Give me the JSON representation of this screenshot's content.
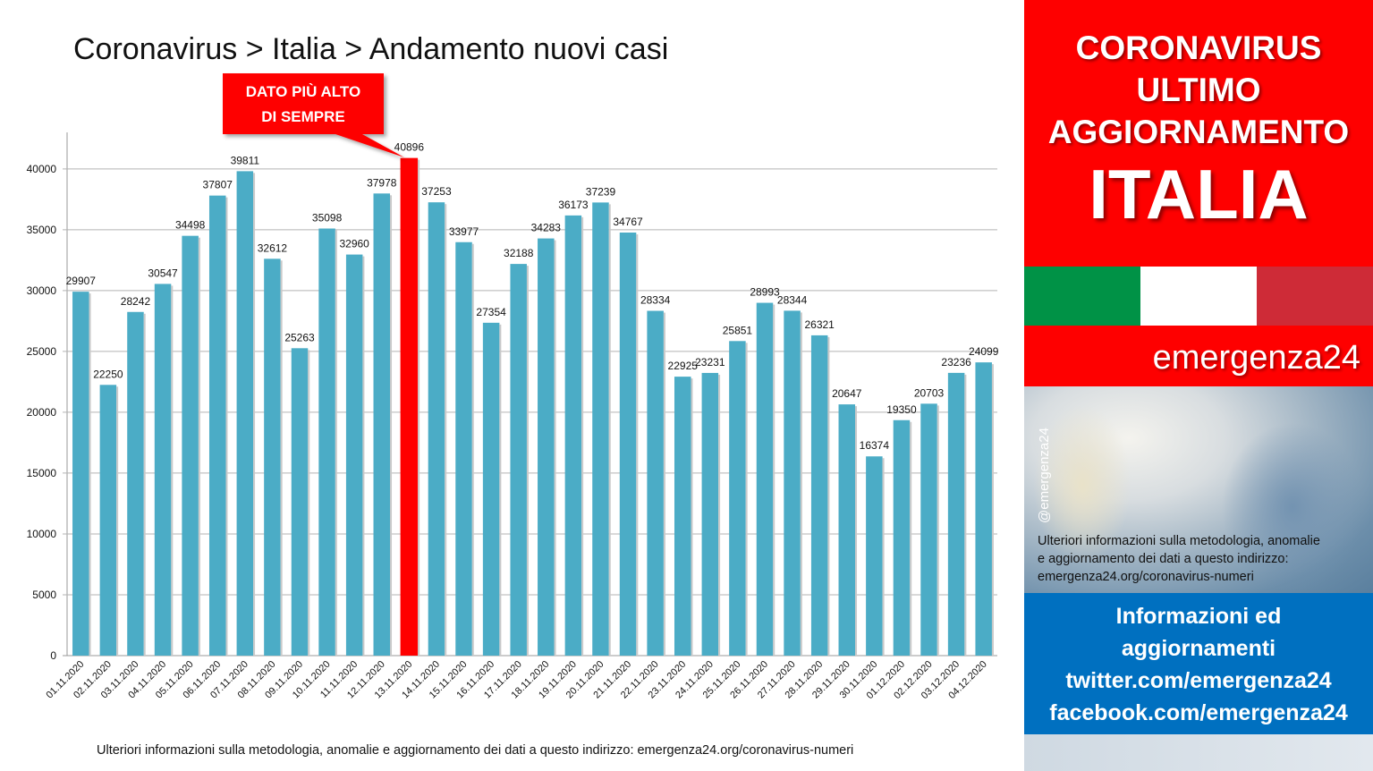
{
  "title": "Coronavirus > Italia > Andamento nuovi casi",
  "callout": {
    "line1": "DATO PIÙ ALTO",
    "line2": "DI SEMPRE"
  },
  "footer_note": "Ulteriori informazioni sulla metodologia, anomalie e aggiornamento dei dati a questo indirizzo: emergenza24.org/coronavirus-numeri",
  "side": {
    "headline": [
      "CORONAVIRUS",
      "ULTIMO",
      "AGGIORNAMENTO"
    ],
    "country": "ITALIA",
    "brand": "emergenza24",
    "handle": "@emergenza24",
    "note_lines": [
      "Ulteriori informazioni sulla metodologia, anomalie",
      "e aggiornamento dei dati a questo indirizzo:",
      "emergenza24.org/coronavirus-numeri"
    ],
    "info_lines": [
      "Informazioni ed",
      "aggiornamenti",
      "twitter.com/emergenza24",
      "facebook.com/emergenza24"
    ]
  },
  "colors": {
    "bar": "#4bacc6",
    "highlight_bar": "#ff0000",
    "flag_green": "#009246",
    "flag_white": "#ffffff",
    "flag_red": "#ce2b37",
    "accent_red": "#fe0000",
    "info_blue": "#0070c0"
  },
  "chart_data": {
    "type": "bar",
    "categories": [
      "01.11.2020",
      "02.11.2020",
      "03.11.2020",
      "04.11.2020",
      "05.11.2020",
      "06.11.2020",
      "07.11.2020",
      "08.11.2020",
      "09.11.2020",
      "10.11.2020",
      "11.11.2020",
      "12.11.2020",
      "13.11.2020",
      "14.11.2020",
      "15.11.2020",
      "16.11.2020",
      "17.11.2020",
      "18.11.2020",
      "19.11.2020",
      "20.11.2020",
      "21.11.2020",
      "22.11.2020",
      "23.11.2020",
      "24.11.2020",
      "25.11.2020",
      "26.11.2020",
      "27.11.2020",
      "28.11.2020",
      "29.11.2020",
      "30.11.2020",
      "01.12.2020",
      "02.12.2020",
      "03.12.2020",
      "04.12.2020"
    ],
    "values": [
      29907,
      22250,
      28242,
      30547,
      34498,
      37807,
      39811,
      32612,
      25263,
      35098,
      32960,
      37978,
      40896,
      37253,
      33977,
      27354,
      32188,
      34283,
      36173,
      37239,
      34767,
      28334,
      22925,
      23231,
      25851,
      28993,
      28344,
      26321,
      20647,
      16374,
      19350,
      20703,
      23236,
      24099
    ],
    "highlight_index": 12,
    "ylim": [
      0,
      43000
    ],
    "yticks": [
      0,
      5000,
      10000,
      15000,
      20000,
      25000,
      30000,
      35000,
      40000
    ],
    "grid": true,
    "legend": "none"
  }
}
